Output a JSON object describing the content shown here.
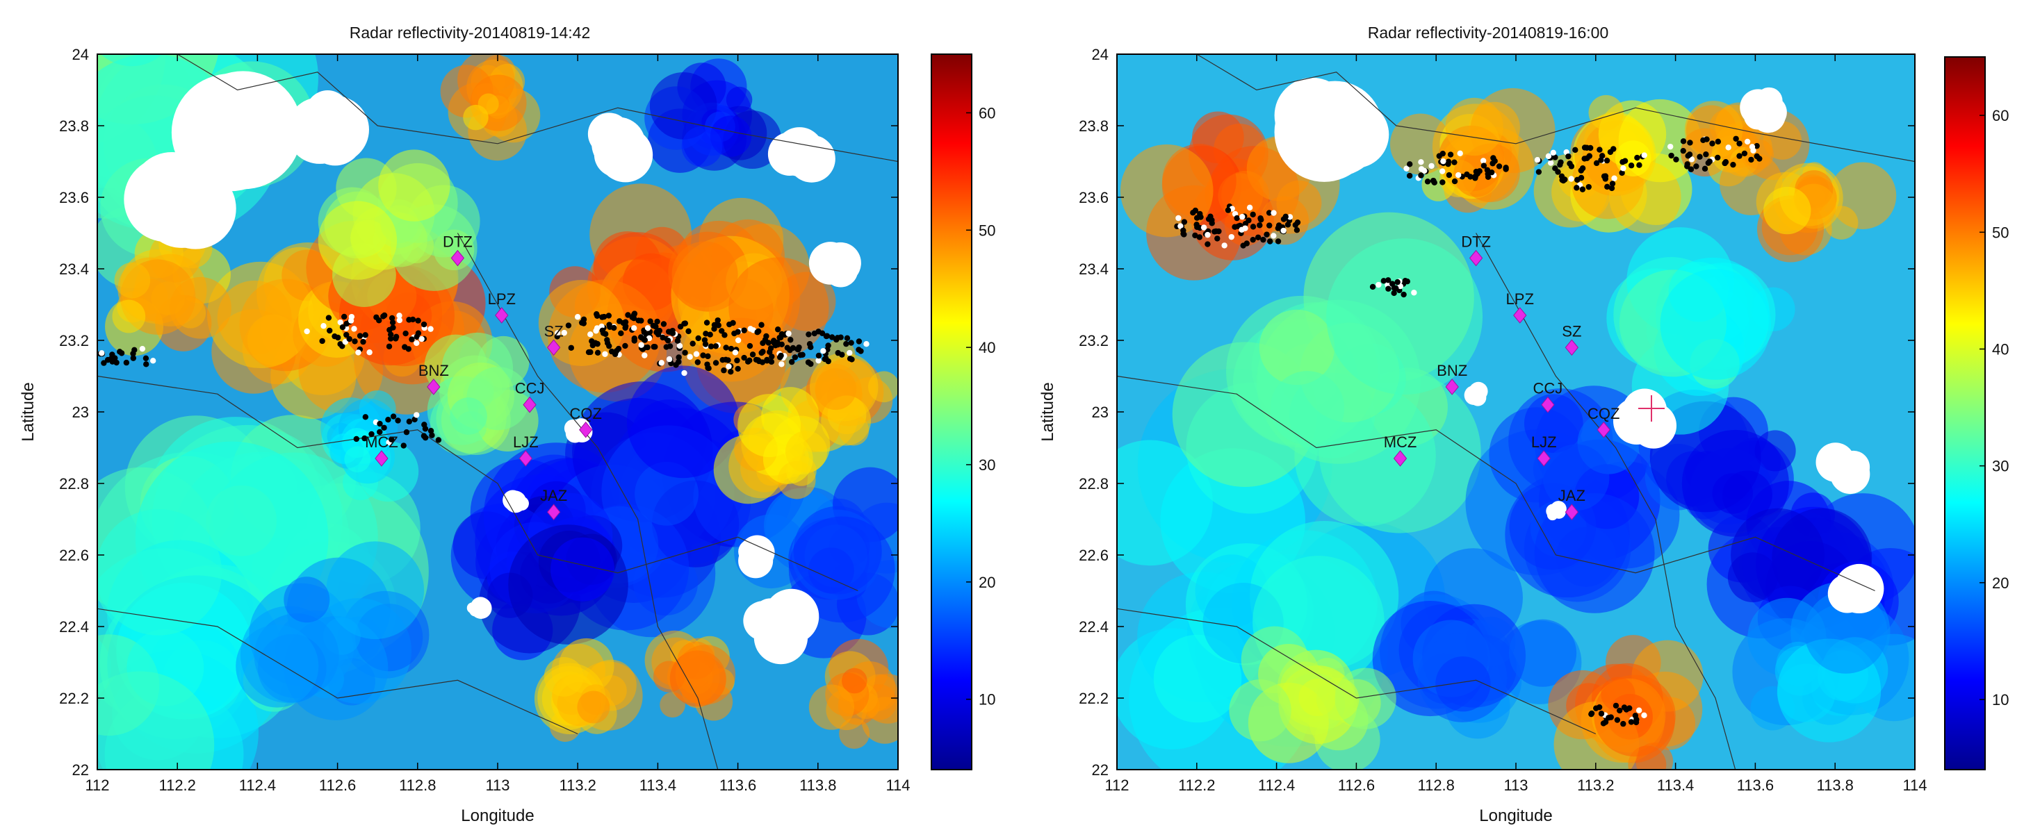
{
  "chart_data": [
    {
      "type": "heatmap",
      "title": "Radar reflectivity-20140819-14:42",
      "xlabel": "Longitude",
      "ylabel": "Latitude",
      "xlim": [
        112,
        114
      ],
      "ylim": [
        22,
        24
      ],
      "x_ticks": [
        "112",
        "112.2",
        "112.4",
        "112.6",
        "112.8",
        "113",
        "113.2",
        "113.4",
        "113.6",
        "113.8",
        "114"
      ],
      "y_ticks": [
        "22",
        "22.2",
        "22.4",
        "22.6",
        "22.8",
        "23",
        "23.2",
        "23.4",
        "23.6",
        "23.8",
        "24"
      ],
      "colorbar": {
        "range": [
          4,
          65
        ],
        "ticks": [
          "10",
          "20",
          "30",
          "40",
          "50",
          "60"
        ],
        "colormap": "jet"
      },
      "stations": [
        {
          "name": "DTZ",
          "x": 112.9,
          "y": 23.43
        },
        {
          "name": "LPZ",
          "x": 113.01,
          "y": 23.27
        },
        {
          "name": "SZ",
          "x": 113.14,
          "y": 23.18
        },
        {
          "name": "BNZ",
          "x": 112.84,
          "y": 23.07
        },
        {
          "name": "CCJ",
          "x": 113.08,
          "y": 23.02
        },
        {
          "name": "CQZ",
          "x": 113.22,
          "y": 22.95
        },
        {
          "name": "MCZ",
          "x": 112.71,
          "y": 22.87
        },
        {
          "name": "LJZ",
          "x": 113.07,
          "y": 22.87
        },
        {
          "name": "JAZ",
          "x": 113.14,
          "y": 22.72
        }
      ],
      "lightning_clusters": [
        {
          "x": 112.68,
          "y": 23.22,
          "spread": 0.1,
          "count": 60
        },
        {
          "x": 113.3,
          "y": 23.22,
          "spread": 0.1,
          "count": 90
        },
        {
          "x": 113.55,
          "y": 23.18,
          "spread": 0.13,
          "count": 120
        },
        {
          "x": 113.8,
          "y": 23.18,
          "spread": 0.08,
          "count": 50
        },
        {
          "x": 112.08,
          "y": 23.15,
          "spread": 0.05,
          "count": 20
        },
        {
          "x": 112.75,
          "y": 22.95,
          "spread": 0.08,
          "count": 25
        }
      ]
    },
    {
      "type": "heatmap",
      "title": "Radar reflectivity-20140819-16:00",
      "xlabel": "Longitude",
      "ylabel": "Latitude",
      "xlim": [
        112,
        114
      ],
      "ylim": [
        22,
        24
      ],
      "x_ticks": [
        "112",
        "112.2",
        "112.4",
        "112.6",
        "112.8",
        "113",
        "113.2",
        "113.4",
        "113.6",
        "113.8",
        "114"
      ],
      "y_ticks": [
        "22",
        "22.2",
        "22.4",
        "22.6",
        "22.8",
        "23",
        "23.2",
        "23.4",
        "23.6",
        "23.8",
        "24"
      ],
      "colorbar": {
        "range": [
          4,
          65
        ],
        "ticks": [
          "10",
          "20",
          "30",
          "40",
          "50",
          "60"
        ],
        "colormap": "jet"
      },
      "stations": [
        {
          "name": "DTZ",
          "x": 112.9,
          "y": 23.43
        },
        {
          "name": "LPZ",
          "x": 113.01,
          "y": 23.27
        },
        {
          "name": "SZ",
          "x": 113.14,
          "y": 23.18
        },
        {
          "name": "BNZ",
          "x": 112.84,
          "y": 23.07
        },
        {
          "name": "CCJ",
          "x": 113.08,
          "y": 23.02
        },
        {
          "name": "CQZ",
          "x": 113.22,
          "y": 22.95
        },
        {
          "name": "MCZ",
          "x": 112.71,
          "y": 22.87
        },
        {
          "name": "LJZ",
          "x": 113.07,
          "y": 22.87
        },
        {
          "name": "JAZ",
          "x": 113.14,
          "y": 22.72
        }
      ],
      "lightning_clusters": [
        {
          "x": 112.3,
          "y": 23.52,
          "spread": 0.1,
          "count": 80
        },
        {
          "x": 112.85,
          "y": 23.68,
          "spread": 0.08,
          "count": 50
        },
        {
          "x": 113.2,
          "y": 23.68,
          "spread": 0.1,
          "count": 60
        },
        {
          "x": 113.5,
          "y": 23.72,
          "spread": 0.08,
          "count": 40
        },
        {
          "x": 112.7,
          "y": 23.35,
          "spread": 0.04,
          "count": 20
        },
        {
          "x": 113.25,
          "y": 22.15,
          "spread": 0.05,
          "count": 25
        }
      ]
    }
  ]
}
